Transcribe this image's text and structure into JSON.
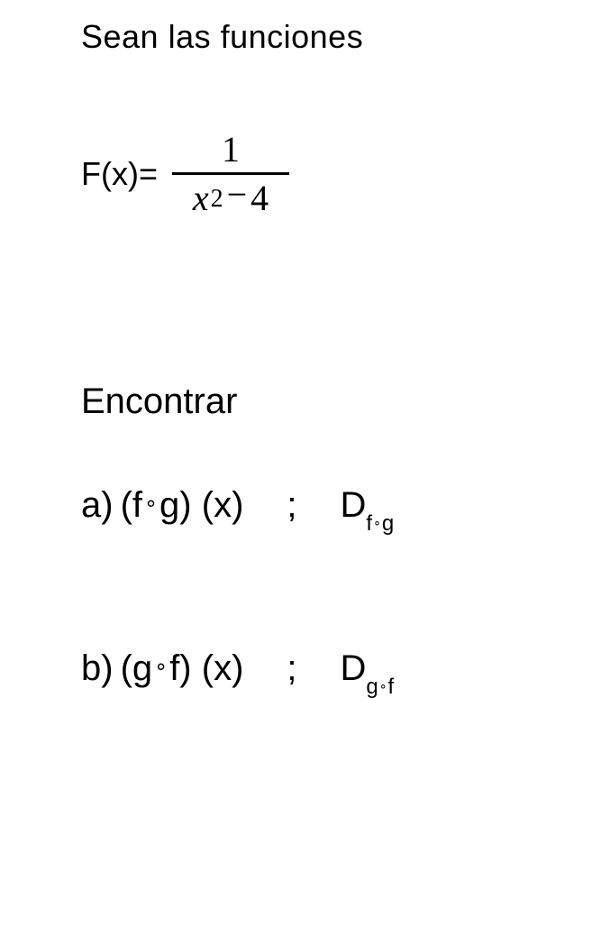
{
  "text_color": "#000000",
  "background_color": "#ffffff",
  "intro": "Sean las funciones",
  "function": {
    "label": "F(x)=",
    "numerator": "1",
    "denom_var": "x",
    "denom_exp": "2",
    "denom_minus": "−",
    "denom_const": "4"
  },
  "find_label": "Encontrar",
  "questions": {
    "a": {
      "label": "a)",
      "open": "(f",
      "compose": "∘",
      "close": "g)",
      "arg": "(x)",
      "semicolon": ";",
      "domain_D": "D",
      "sub_f": "f",
      "sub_compose": "∘",
      "sub_g": "g"
    },
    "b": {
      "label": "b)",
      "open": "(g",
      "compose": "∘",
      "close": "f)",
      "arg": "(x)",
      "semicolon": ";",
      "domain_D": "D",
      "sub_g": "g",
      "sub_compose": "∘",
      "sub_f": "f"
    }
  }
}
